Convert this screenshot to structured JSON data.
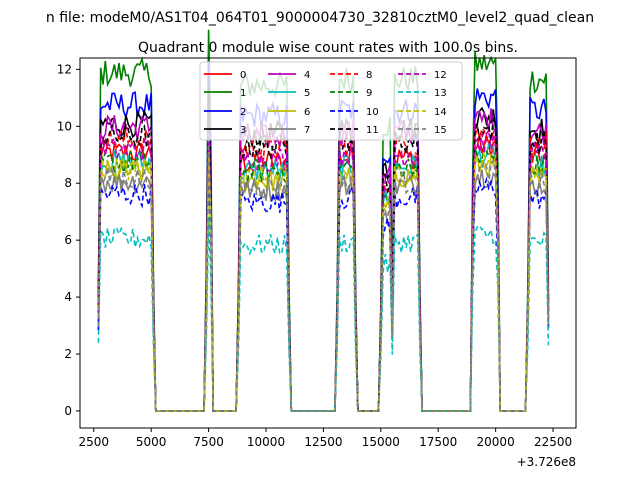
{
  "chart_data": {
    "type": "line",
    "suptitle": "n file: modeM0/AS1T04_064T01_9000004730_32810cztM0_level2_quad_clean",
    "title": "Quadrant 0 module wise count rates with 100.0s bins.",
    "xlabel": "",
    "ylabel": "",
    "x_offset_label": "+3.726e8",
    "xlim": [
      1900,
      23500
    ],
    "ylim": [
      -0.6,
      12.4
    ],
    "x_ticks": [
      2500,
      5000,
      7500,
      10000,
      12500,
      15000,
      17500,
      20000,
      22500
    ],
    "y_ticks": [
      0,
      2,
      4,
      6,
      8,
      10,
      12
    ],
    "x_tick_labels": [
      "2500",
      "5000",
      "7500",
      "10000",
      "12500",
      "15000",
      "17500",
      "20000",
      "22500"
    ],
    "y_tick_labels": [
      "0",
      "2",
      "4",
      "6",
      "8",
      "10",
      "12"
    ],
    "legend_position": "top-center",
    "legend_columns": 4,
    "segments": [
      [
        2700,
        5100,
        0.12
      ],
      [
        7400,
        7650,
        0.25
      ],
      [
        8800,
        11000,
        0.08
      ],
      [
        13100,
        13900,
        0.1
      ],
      [
        15000,
        15500,
        -0.05
      ],
      [
        15500,
        16700,
        0.1
      ],
      [
        18950,
        20150,
        0.15
      ],
      [
        21400,
        22300,
        0.1
      ]
    ],
    "series": [
      {
        "name": "0",
        "level": 8.1,
        "color": "#ff0000",
        "dash": "solid"
      },
      {
        "name": "1",
        "level": 10.6,
        "color": "#008000",
        "dash": "solid"
      },
      {
        "name": "2",
        "level": 9.6,
        "color": "#0000ff",
        "dash": "solid"
      },
      {
        "name": "3",
        "level": 9.0,
        "color": "#000000",
        "dash": "solid"
      },
      {
        "name": "4",
        "level": 8.9,
        "color": "#bf00bf",
        "dash": "solid"
      },
      {
        "name": "5",
        "level": 7.8,
        "color": "#00bfbf",
        "dash": "solid"
      },
      {
        "name": "6",
        "level": 7.5,
        "color": "#bfbf00",
        "dash": "solid"
      },
      {
        "name": "7",
        "level": 7.2,
        "color": "#808080",
        "dash": "solid"
      },
      {
        "name": "8",
        "level": 8.5,
        "color": "#ff0000",
        "dash": "dashed"
      },
      {
        "name": "9",
        "level": 7.8,
        "color": "#008000",
        "dash": "dashed"
      },
      {
        "name": "10",
        "level": 6.8,
        "color": "#0000ff",
        "dash": "dashed"
      },
      {
        "name": "11",
        "level": 8.6,
        "color": "#000000",
        "dash": "dashed"
      },
      {
        "name": "12",
        "level": 8.2,
        "color": "#bf00bf",
        "dash": "dashed"
      },
      {
        "name": "13",
        "level": 5.4,
        "color": "#00bfbf",
        "dash": "dashed"
      },
      {
        "name": "14",
        "level": 7.6,
        "color": "#bfbf00",
        "dash": "dashed"
      },
      {
        "name": "15",
        "level": 7.3,
        "color": "#808080",
        "dash": "dashed"
      }
    ]
  }
}
